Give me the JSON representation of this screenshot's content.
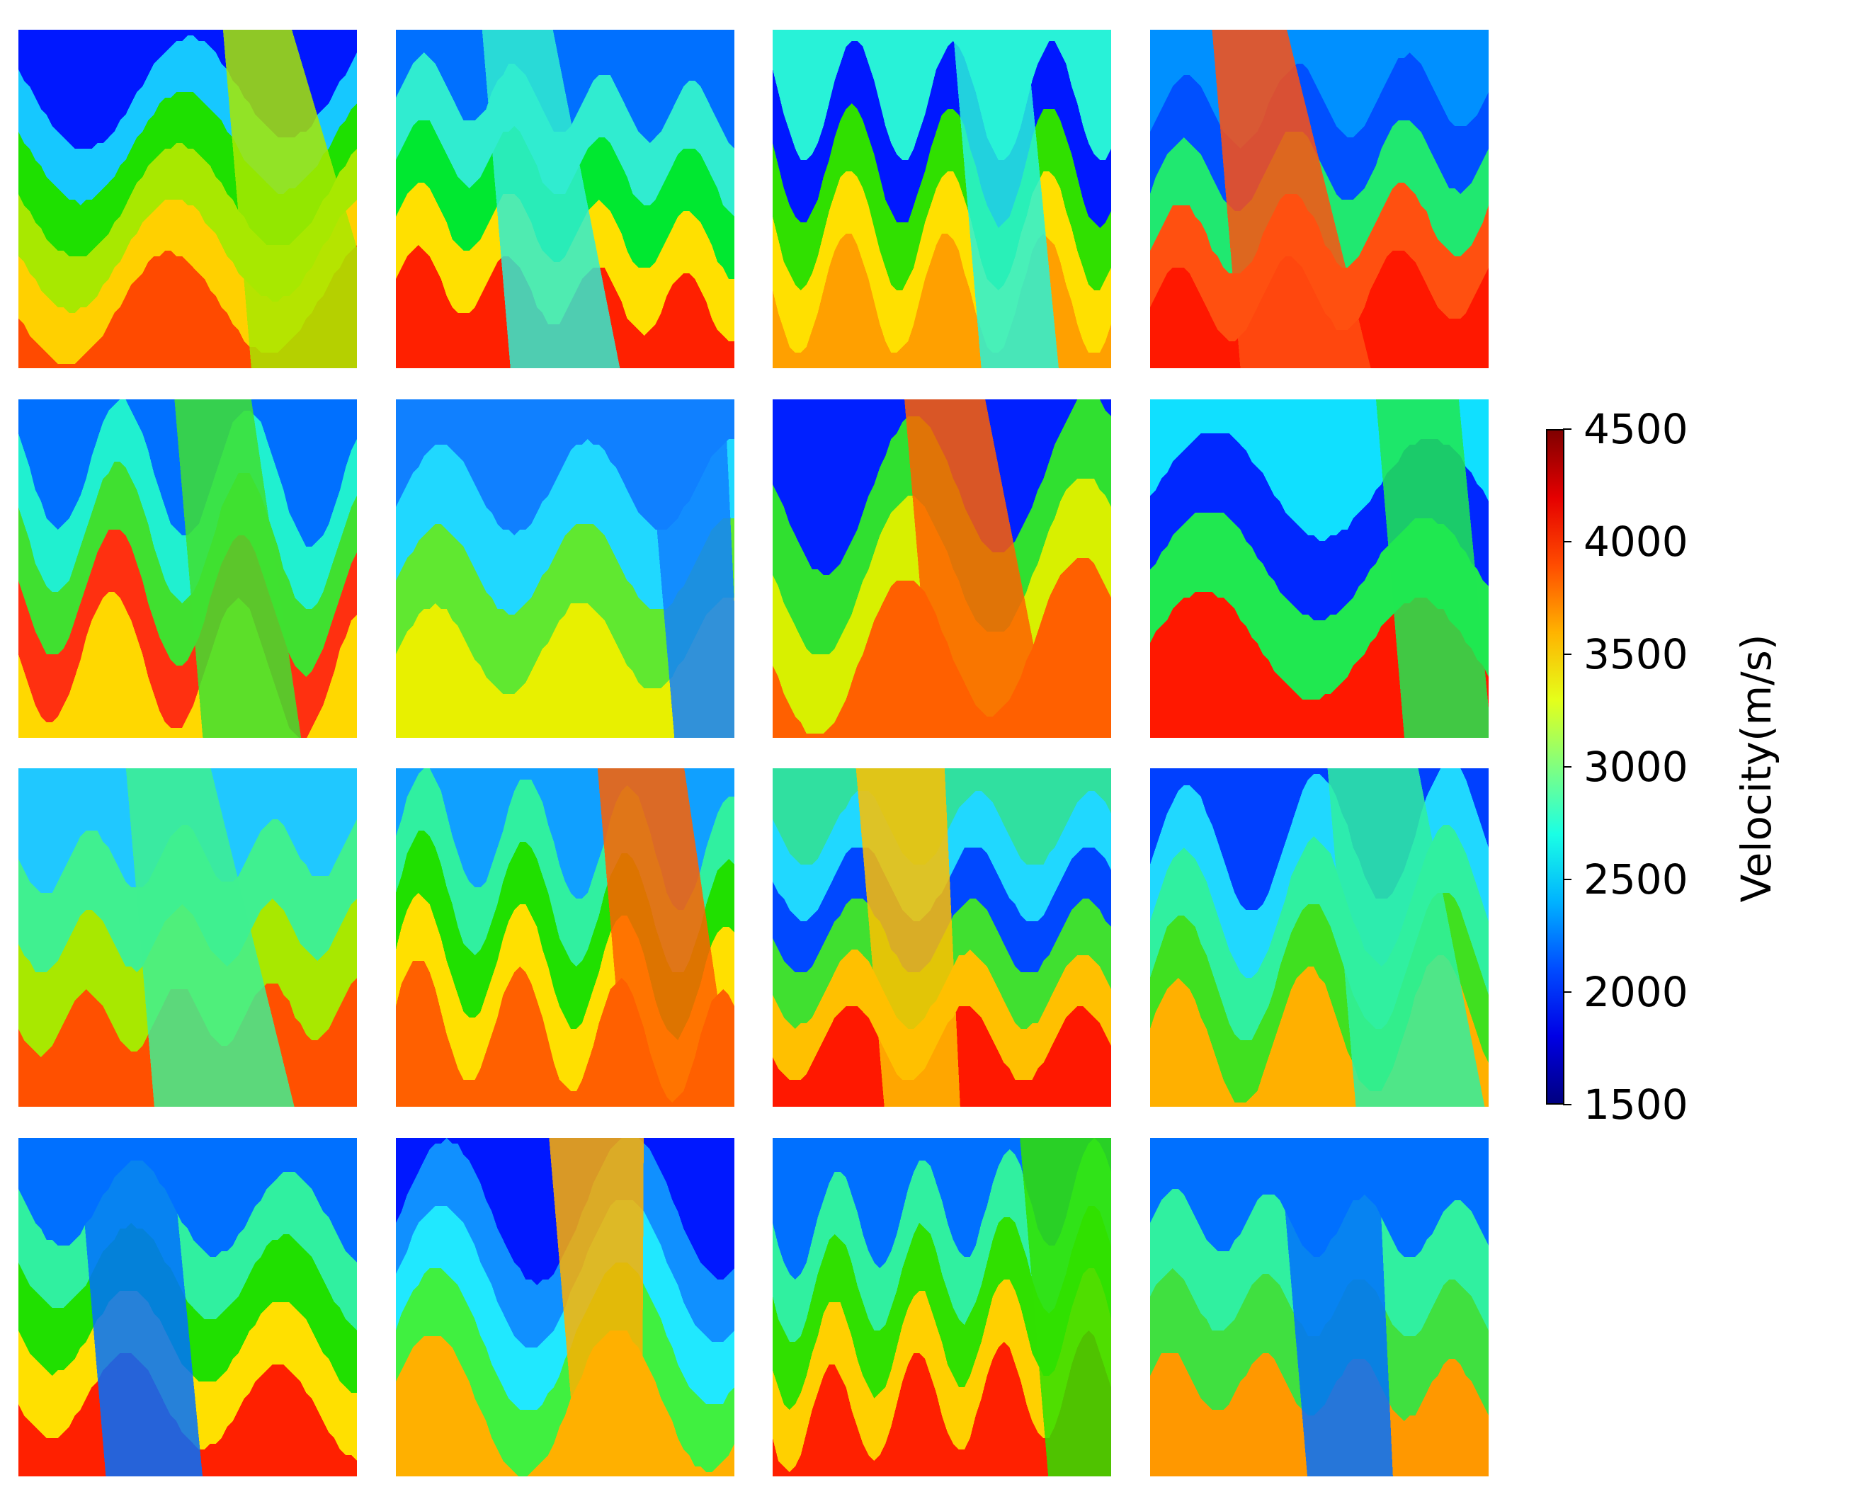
{
  "chart_data": {
    "type": "heatmap",
    "description_of_layout": "",
    "panels": [
      {
        "id": 1,
        "colors": [
          "#0018ff",
          "#16c8ff",
          "#1ee000",
          "#a8e800",
          "#ffd000",
          "#ff4a00"
        ]
      },
      {
        "id": 2,
        "colors": [
          "#0070ff",
          "#30ecd0",
          "#00e830",
          "#ffe000",
          "#ff2000"
        ]
      },
      {
        "id": 3,
        "colors": [
          "#28f2d8",
          "#0018ff",
          "#30e000",
          "#ffe000",
          "#ffa000"
        ]
      },
      {
        "id": 4,
        "colors": [
          "#0090ff",
          "#0050ff",
          "#20e870",
          "#ff5010",
          "#ff1800"
        ]
      },
      {
        "id": 5,
        "colors": [
          "#0070ff",
          "#20f0d0",
          "#40e030",
          "#ff3010",
          "#ffd800"
        ]
      },
      {
        "id": 6,
        "colors": [
          "#1080ff",
          "#20d8ff",
          "#60e830",
          "#e8f000"
        ]
      },
      {
        "id": 7,
        "colors": [
          "#0020ff",
          "#30e030",
          "#d8f000",
          "#ff6000"
        ]
      },
      {
        "id": 8,
        "colors": [
          "#10e0ff",
          "#0028ff",
          "#20e850",
          "#ff1800"
        ]
      },
      {
        "id": 9,
        "colors": [
          "#20c8ff",
          "#40f090",
          "#a8e800",
          "#ff5000"
        ]
      },
      {
        "id": 10,
        "colors": [
          "#10a0ff",
          "#30f0a0",
          "#20e000",
          "#ffe000",
          "#ff6000"
        ]
      },
      {
        "id": 11,
        "colors": [
          "#30e0a0",
          "#20d8ff",
          "#0048ff",
          "#40e030",
          "#ffc000",
          "#ff1800"
        ]
      },
      {
        "id": 12,
        "colors": [
          "#0040ff",
          "#20d8ff",
          "#30f0a0",
          "#40e020",
          "#ffb000"
        ]
      },
      {
        "id": 13,
        "colors": [
          "#0070ff",
          "#30f0a0",
          "#20e000",
          "#ffe000",
          "#ff2000"
        ]
      },
      {
        "id": 14,
        "colors": [
          "#0018ff",
          "#1090ff",
          "#20e8ff",
          "#40f040",
          "#ffb000"
        ]
      },
      {
        "id": 15,
        "colors": [
          "#0070ff",
          "#30f0a0",
          "#30e000",
          "#ffd000",
          "#ff2000"
        ]
      },
      {
        "id": 16,
        "colors": [
          "#0070ff",
          "#30f0a0",
          "#40e040",
          "#ff9800"
        ]
      }
    ],
    "colorbar": {
      "label": "Velocity(m/s)",
      "range": [
        1500,
        4500
      ],
      "ticks": [
        "4500",
        "4000",
        "3500",
        "3000",
        "2500",
        "2000",
        "1500"
      ],
      "colormap": "jet"
    }
  }
}
